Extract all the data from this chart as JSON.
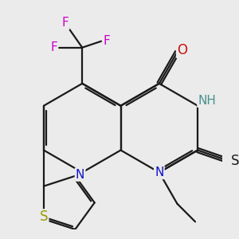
{
  "bg_color": "#ebebeb",
  "bond_color": "#1a1a1a",
  "bond_width": 1.6,
  "dbo": 0.055,
  "fs": 11,
  "figsize": [
    3.0,
    3.0
  ],
  "dpi": 100,
  "xlim": [
    -2.8,
    2.4
  ],
  "ylim": [
    -2.4,
    2.8
  ],
  "colors": {
    "N": "#1010cc",
    "O": "#cc1010",
    "S_thione": "#1a1a1a",
    "S_thio": "#999900",
    "F": "#cc00cc",
    "NH": "#4a9090",
    "H": "#4a9090",
    "C": "#1a1a1a"
  }
}
